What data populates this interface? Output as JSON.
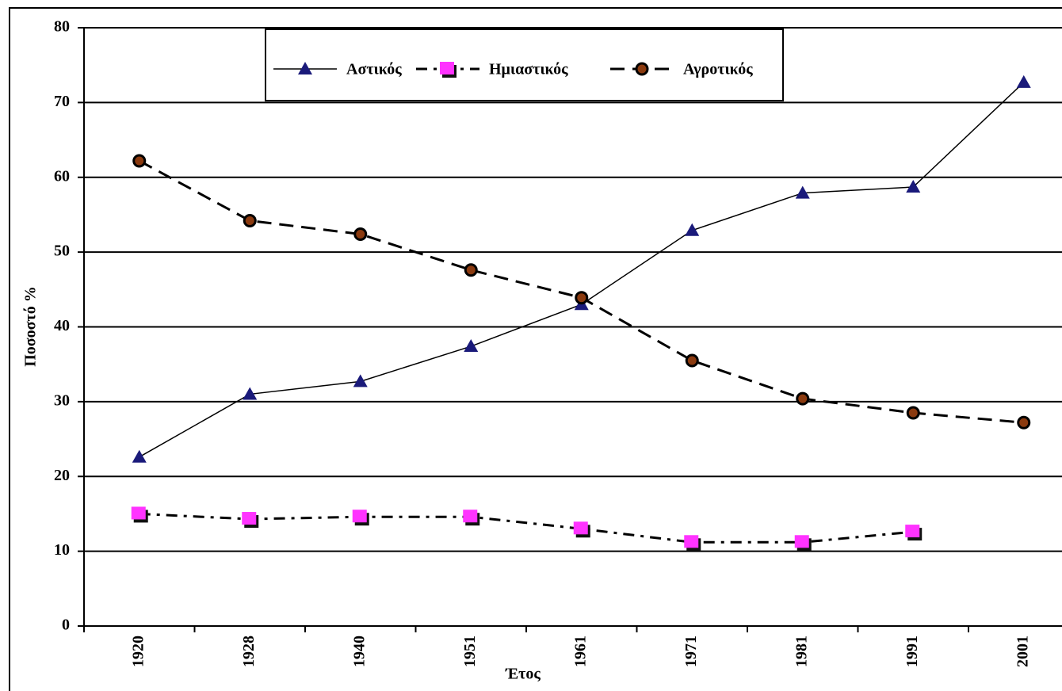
{
  "chart_data": {
    "type": "line",
    "x_label": "Έτος",
    "y_label": "Ποσοστό %",
    "categories": [
      "1920",
      "1928",
      "1940",
      "1951",
      "1961",
      "1971",
      "1981",
      "1991",
      "2001"
    ],
    "series": [
      {
        "name": "Αστικός",
        "color": "#1a1a7a",
        "marker": "triangle",
        "line": "solid",
        "values": [
          22.6,
          31.0,
          32.7,
          37.4,
          43.0,
          52.9,
          57.9,
          58.7,
          72.7
        ]
      },
      {
        "name": "Ημιαστικός",
        "color": "#ff33ff",
        "marker": "square",
        "line": "dashdot",
        "values": [
          15.0,
          14.3,
          14.6,
          14.6,
          13.0,
          11.2,
          11.2,
          12.6,
          null
        ]
      },
      {
        "name": "Αγροτικός",
        "color": "#8b3a0f",
        "marker": "circle",
        "line": "dashed",
        "values": [
          62.2,
          54.2,
          52.4,
          47.6,
          43.9,
          35.5,
          30.4,
          28.5,
          27.2
        ]
      }
    ],
    "ylim": [
      0,
      80
    ],
    "yticks": [
      0,
      10,
      20,
      30,
      40,
      50,
      60,
      70,
      80
    ],
    "grid": true,
    "legend": "top"
  }
}
